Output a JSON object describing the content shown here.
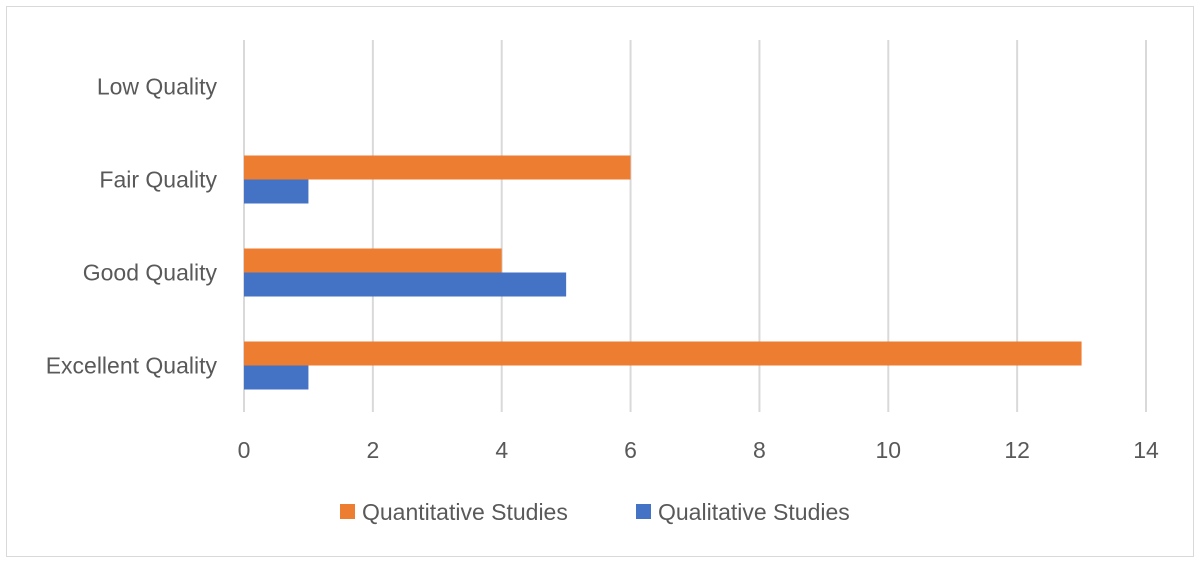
{
  "chart_data": {
    "type": "bar",
    "orientation": "horizontal",
    "categories": [
      "Low Quality",
      "Fair Quality",
      "Good Quality",
      "Excellent Quality"
    ],
    "series": [
      {
        "name": "Quantitative Studies",
        "color": "#ED7D31",
        "values": [
          0,
          6,
          4,
          13
        ]
      },
      {
        "name": "Qualitative Studies",
        "color": "#4472C4",
        "values": [
          0,
          1,
          5,
          1
        ]
      }
    ],
    "xlim": [
      0,
      14
    ],
    "xticks": [
      0,
      2,
      4,
      6,
      8,
      10,
      12,
      14
    ],
    "grid": "vertical",
    "legend_position": "bottom"
  }
}
